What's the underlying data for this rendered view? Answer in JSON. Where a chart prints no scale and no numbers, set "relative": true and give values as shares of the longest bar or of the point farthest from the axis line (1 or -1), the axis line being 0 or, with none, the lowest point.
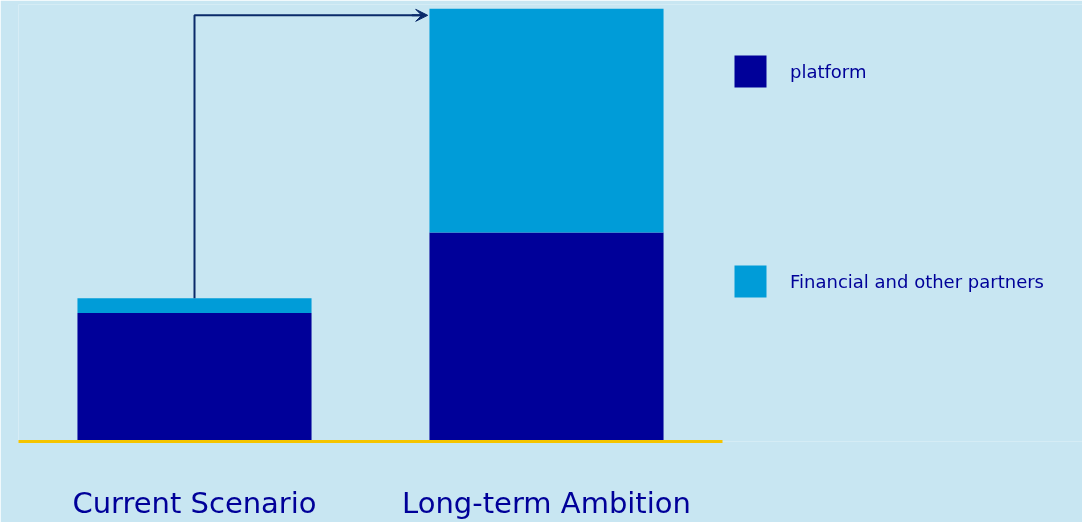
{
  "chart_data": {
    "type": "bar",
    "stacked": true,
    "relative": true,
    "categories": [
      "Current Scenario",
      "Long-term Ambition"
    ],
    "series": [
      {
        "name": "platform",
        "color": "#000099",
        "values": [
          0.297,
          0.483
        ]
      },
      {
        "name": "Financial and other partners",
        "color": "#009cd8",
        "values": [
          0.034,
          0.517
        ]
      }
    ],
    "legend": "right",
    "grid": false
  }
}
